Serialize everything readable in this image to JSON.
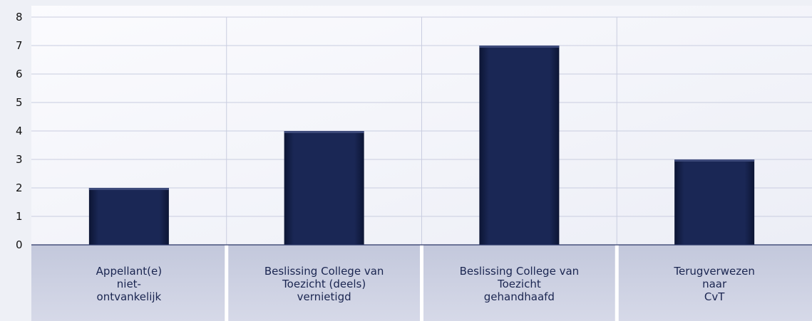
{
  "chart_data": {
    "type": "bar",
    "categories": [
      "Appellant(e)\nniet-\nontvankelijk",
      "Beslissing College van\nToezicht (deels)\nvernietigd",
      "Beslissing College van\nToezicht\ngehandhaafd",
      "Terugverwezen\nnaar\nCvT"
    ],
    "values": [
      2,
      4,
      7,
      3
    ],
    "yticks": [
      "0",
      "1",
      "2",
      "3",
      "4",
      "5",
      "6",
      "7",
      "8"
    ],
    "ylim": [
      0,
      8
    ],
    "grid": true,
    "colors": {
      "bar": "#16224a",
      "plot_background": "#f7f8fc",
      "label_band": "#cdd1e2",
      "gridline": "#c9cde0"
    }
  }
}
